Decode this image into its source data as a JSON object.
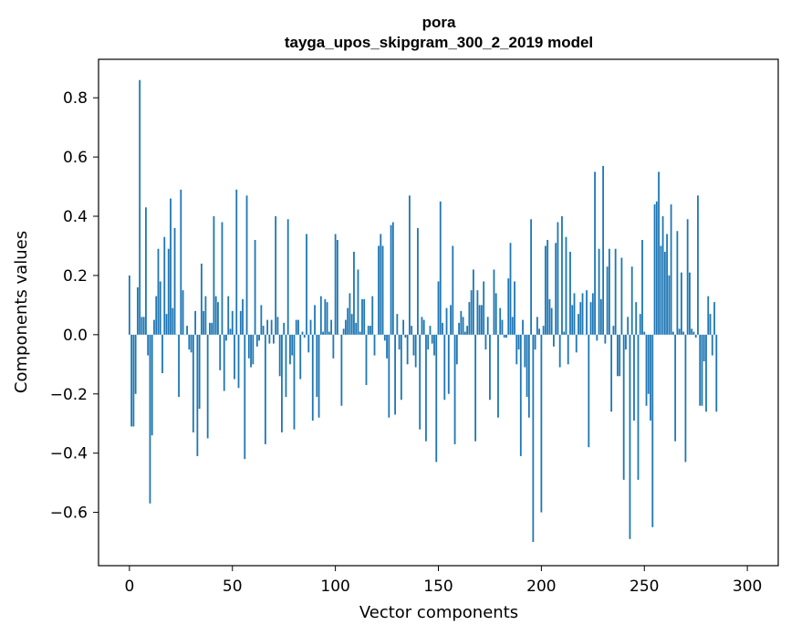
{
  "chart_data": {
    "type": "bar",
    "title": "pora",
    "subtitle": "tayga_upos_skipgram_300_2_2019 model",
    "xlabel": "Vector components",
    "ylabel": "Components values",
    "xlim": [
      -15,
      315
    ],
    "ylim": [
      -0.78,
      0.93
    ],
    "xticks": [
      0,
      50,
      100,
      150,
      200,
      250,
      300
    ],
    "yticks": [
      -0.6,
      -0.4,
      -0.2,
      0.0,
      0.2,
      0.4,
      0.6,
      0.8
    ],
    "ytick_labels": [
      "−0.6",
      "−0.4",
      "−0.2",
      "0.0",
      "0.2",
      "0.4",
      "0.6",
      "0.8"
    ],
    "xtick_labels": [
      "0",
      "50",
      "100",
      "150",
      "200",
      "250",
      "300"
    ],
    "color": "#1f77b4",
    "values": [
      0.2,
      -0.31,
      -0.31,
      -0.2,
      0.16,
      0.86,
      0.06,
      0.06,
      0.43,
      -0.07,
      -0.57,
      -0.34,
      0.05,
      0.13,
      0.29,
      0.18,
      -0.13,
      0.33,
      0.07,
      0.29,
      0.46,
      0.09,
      0.36,
      0.0,
      -0.21,
      0.49,
      0.15,
      0.0,
      0.03,
      -0.05,
      -0.06,
      -0.33,
      0.08,
      -0.41,
      -0.25,
      0.24,
      0.08,
      0.13,
      -0.35,
      0.04,
      0.04,
      0.4,
      0.13,
      0.11,
      -0.12,
      0.38,
      -0.19,
      -0.02,
      0.13,
      0.02,
      0.08,
      -0.15,
      0.49,
      -0.18,
      0.08,
      0.12,
      -0.42,
      0.47,
      -0.08,
      -0.11,
      -0.1,
      0.32,
      -0.04,
      -0.02,
      0.1,
      0.03,
      -0.37,
      0.05,
      -0.03,
      0.05,
      -0.03,
      0.4,
      0.06,
      -0.14,
      -0.33,
      0.04,
      -0.21,
      0.39,
      -0.1,
      -0.07,
      -0.32,
      0.05,
      0.05,
      -0.15,
      0.01,
      -0.01,
      0.34,
      -0.06,
      0.05,
      -0.29,
      0.1,
      -0.21,
      -0.28,
      0.13,
      0.01,
      0.12,
      0.11,
      0.01,
      0.05,
      -0.08,
      0.34,
      0.32,
      0.0,
      -0.24,
      0.02,
      0.05,
      0.09,
      0.14,
      0.07,
      0.28,
      0.04,
      0.22,
      0.01,
      0.12,
      0.12,
      -0.17,
      0.03,
      0.03,
      0.13,
      -0.07,
      0.0,
      0.3,
      0.34,
      0.3,
      -0.02,
      -0.08,
      -0.28,
      0.37,
      0.38,
      -0.27,
      0.07,
      -0.05,
      -0.22,
      0.05,
      -0.01,
      -0.1,
      0.47,
      0.03,
      -0.07,
      -0.11,
      0.36,
      -0.32,
      0.06,
      0.05,
      -0.36,
      -0.05,
      0.03,
      -0.03,
      -0.07,
      -0.43,
      0.18,
      0.45,
      0.04,
      -0.22,
      0.09,
      -0.2,
      0.1,
      0.3,
      -0.37,
      -0.1,
      0.04,
      0.08,
      0.06,
      0.01,
      0.03,
      0.11,
      0.15,
      0.22,
      -0.36,
      0.15,
      0.1,
      0.1,
      0.18,
      -0.05,
      0.06,
      -0.22,
      0.0,
      0.22,
      0.14,
      -0.28,
      0.09,
      0.05,
      -0.01,
      -0.01,
      0.19,
      0.31,
      0.06,
      0.18,
      -0.1,
      -0.05,
      -0.41,
      0.05,
      -0.11,
      -0.21,
      -0.28,
      0.39,
      -0.7,
      -0.05,
      0.06,
      0.02,
      -0.6,
      0.03,
      0.3,
      0.32,
      0.12,
      0.09,
      -0.04,
      0.31,
      0.38,
      -0.11,
      0.4,
      0.01,
      0.33,
      -0.1,
      0.28,
      0.1,
      0.14,
      -0.06,
      0.07,
      0.11,
      0.14,
      0.0,
      0.15,
      -0.38,
      0.11,
      0.14,
      0.55,
      -0.02,
      0.29,
      0.12,
      0.57,
      -0.03,
      0.23,
      0.29,
      -0.26,
      0.03,
      0.29,
      -0.14,
      -0.14,
      0.26,
      -0.49,
      -0.05,
      0.06,
      -0.69,
      0.23,
      -0.29,
      0.11,
      -0.49,
      0.07,
      0.32,
      0.01,
      -0.24,
      -0.2,
      -0.29,
      -0.65,
      0.44,
      0.45,
      0.55,
      0.3,
      0.4,
      0.28,
      0.34,
      0.2,
      0.44,
      0.01,
      -0.36,
      0.35,
      0.02,
      0.21,
      0.01,
      -0.43,
      0.39,
      0.21,
      0.02,
      0.01,
      -0.01,
      0.47,
      -0.24,
      -0.24,
      -0.09,
      -0.26,
      0.13,
      0.07,
      -0.07,
      0.11,
      -0.26
    ]
  }
}
